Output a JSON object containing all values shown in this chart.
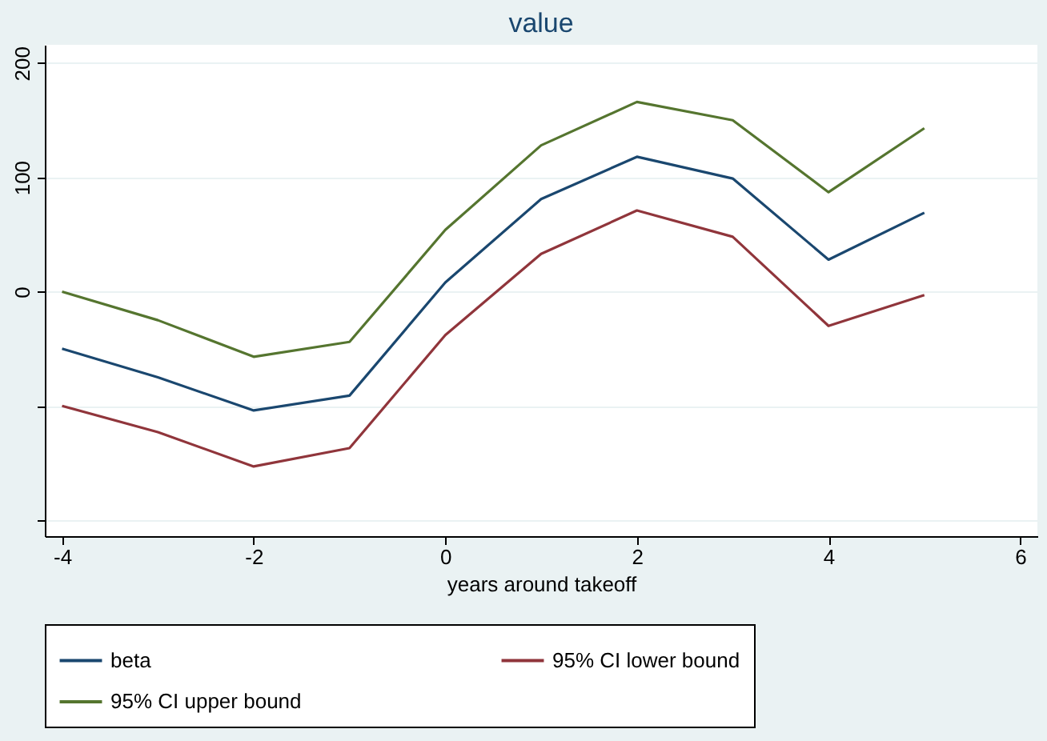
{
  "chart_data": {
    "type": "line",
    "title": "value",
    "xlabel": "years around takeoff",
    "x": [
      -4,
      -3,
      -2,
      -1,
      0,
      1,
      2,
      3,
      4,
      5
    ],
    "series": [
      {
        "name": "beta",
        "color": "#1a476f",
        "values": [
          -50,
          -75,
          -104,
          -91,
          8,
          81,
          118,
          99,
          28,
          69
        ]
      },
      {
        "name": "95% CI lower bound",
        "color": "#90353b",
        "values": [
          -100,
          -123,
          -153,
          -137,
          -38,
          33,
          71,
          48,
          -30,
          -3
        ]
      },
      {
        "name": "95% CI upper bound",
        "color": "#55752f",
        "values": [
          0,
          -25,
          -57,
          -44,
          54,
          128,
          166,
          150,
          87,
          143
        ]
      }
    ],
    "xlim": [
      -4.18,
      6.18
    ],
    "xticks": [
      -4,
      -2,
      0,
      2,
      4,
      6
    ],
    "ylim": [
      -214,
      216
    ],
    "yticks": [
      {
        "value": -200,
        "label": null
      },
      {
        "value": -100,
        "label": null
      },
      0,
      100,
      200
    ],
    "grid": "y",
    "legend": "bottom",
    "marker": "none",
    "line_style": "solid"
  }
}
